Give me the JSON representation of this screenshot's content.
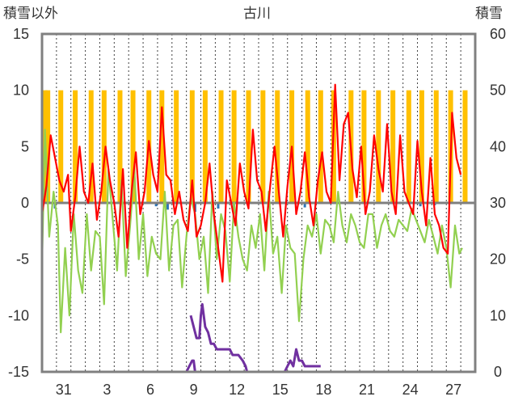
{
  "chart_data": {
    "type": "line",
    "title": "古川",
    "left_axis_label": "積雪以外",
    "right_axis_label": "積雪",
    "y_left": {
      "min": -15,
      "max": 15,
      "ticks": [
        15,
        10,
        5,
        0,
        -5,
        -10,
        -15
      ]
    },
    "y_right": {
      "min": 0,
      "max": 60,
      "ticks": [
        60,
        50,
        40,
        30,
        20,
        10,
        0
      ]
    },
    "x_domain": [
      0,
      30
    ],
    "x_tick_labels": [
      {
        "label": "31",
        "x": 1.5
      },
      {
        "label": "3",
        "x": 4.5
      },
      {
        "label": "6",
        "x": 7.5
      },
      {
        "label": "9",
        "x": 10.5
      },
      {
        "label": "12",
        "x": 13.5
      },
      {
        "label": "15",
        "x": 16.5
      },
      {
        "label": "18",
        "x": 19.5
      },
      {
        "label": "21",
        "x": 22.5
      },
      {
        "label": "24",
        "x": 25.5
      },
      {
        "label": "27",
        "x": 28.5
      }
    ],
    "grid": {
      "vertical": "dotted, one per day",
      "horizontal": "none"
    },
    "colors": {
      "sunshine_bars": "#ffc000",
      "max_temp": "#ff0000",
      "min_temp": "#92d050",
      "snow_depth": "#7030a0",
      "precip": "#2e75b6",
      "zero_line": "#7f7f7f",
      "frame": "#808080"
    },
    "series": [
      {
        "key": "sunshine",
        "type": "bar",
        "axis": "left",
        "values": [
          [
            0.2,
            10
          ],
          [
            0.4,
            10
          ],
          [
            1.3,
            10
          ],
          [
            2.3,
            10
          ],
          [
            3.4,
            10
          ],
          [
            4.3,
            10
          ],
          [
            5.4,
            10
          ],
          [
            6.3,
            10
          ],
          [
            7.4,
            10
          ],
          [
            8.3,
            10
          ],
          [
            9.3,
            10
          ],
          [
            10.4,
            10
          ],
          [
            11.3,
            10
          ],
          [
            12.4,
            10
          ],
          [
            13.3,
            10
          ],
          [
            14.3,
            10
          ],
          [
            15.3,
            10
          ],
          [
            16.3,
            10
          ],
          [
            17.3,
            10
          ],
          [
            18.4,
            10
          ],
          [
            19.3,
            10
          ],
          [
            20.2,
            10
          ],
          [
            21.4,
            10
          ],
          [
            22.3,
            10
          ],
          [
            23.3,
            10
          ],
          [
            24.3,
            10
          ],
          [
            25.4,
            10
          ],
          [
            26.3,
            10
          ],
          [
            27.3,
            10
          ],
          [
            28.3,
            10
          ],
          [
            29.3,
            10
          ]
        ]
      },
      {
        "key": "max_temp",
        "type": "line",
        "axis": "left",
        "values": [
          [
            0,
            -1
          ],
          [
            0.3,
            1.5
          ],
          [
            0.6,
            6
          ],
          [
            0.9,
            4
          ],
          [
            1.2,
            2
          ],
          [
            1.5,
            1
          ],
          [
            1.8,
            2.5
          ],
          [
            2.0,
            -2.5
          ],
          [
            2.3,
            0.5
          ],
          [
            2.6,
            5
          ],
          [
            2.9,
            1
          ],
          [
            3.2,
            0
          ],
          [
            3.5,
            3.5
          ],
          [
            3.8,
            -1.5
          ],
          [
            4.1,
            1
          ],
          [
            4.4,
            5
          ],
          [
            4.7,
            2
          ],
          [
            5.0,
            0
          ],
          [
            5.3,
            -3
          ],
          [
            5.6,
            3
          ],
          [
            5.9,
            -4
          ],
          [
            6.2,
            1
          ],
          [
            6.5,
            4.5
          ],
          [
            6.8,
            -1
          ],
          [
            7.1,
            1
          ],
          [
            7.4,
            5.5
          ],
          [
            7.7,
            2.5
          ],
          [
            8.0,
            1
          ],
          [
            8.3,
            8.5
          ],
          [
            8.6,
            2.5
          ],
          [
            8.9,
            2
          ],
          [
            9.2,
            -1
          ],
          [
            9.5,
            1
          ],
          [
            9.8,
            -1.5
          ],
          [
            10.1,
            -2.5
          ],
          [
            10.4,
            2
          ],
          [
            10.7,
            -3
          ],
          [
            11.0,
            -2
          ],
          [
            11.3,
            0
          ],
          [
            11.6,
            3.5
          ],
          [
            11.9,
            -1
          ],
          [
            12.2,
            -4
          ],
          [
            12.5,
            -7
          ],
          [
            12.8,
            2
          ],
          [
            13.1,
            0
          ],
          [
            13.4,
            -2
          ],
          [
            13.7,
            3.5
          ],
          [
            14.0,
            1
          ],
          [
            14.3,
            -0.5
          ],
          [
            14.6,
            6.5
          ],
          [
            14.9,
            2
          ],
          [
            15.2,
            1
          ],
          [
            15.5,
            -2.5
          ],
          [
            15.8,
            1.5
          ],
          [
            16.1,
            5
          ],
          [
            16.4,
            1
          ],
          [
            16.7,
            -3
          ],
          [
            17.0,
            1.5
          ],
          [
            17.3,
            5
          ],
          [
            17.6,
            -1
          ],
          [
            17.9,
            1
          ],
          [
            18.2,
            4.5
          ],
          [
            18.5,
            0.5
          ],
          [
            18.8,
            -2
          ],
          [
            19.1,
            2
          ],
          [
            19.4,
            4.5
          ],
          [
            19.7,
            1
          ],
          [
            20.0,
            0
          ],
          [
            20.3,
            10.5
          ],
          [
            20.6,
            2
          ],
          [
            20.9,
            7
          ],
          [
            21.2,
            8
          ],
          [
            21.5,
            3
          ],
          [
            21.8,
            0.5
          ],
          [
            22.1,
            5
          ],
          [
            22.4,
            -1
          ],
          [
            22.7,
            1
          ],
          [
            23.0,
            6
          ],
          [
            23.3,
            3
          ],
          [
            23.6,
            1
          ],
          [
            23.9,
            7
          ],
          [
            24.2,
            1
          ],
          [
            24.5,
            -1
          ],
          [
            24.8,
            6
          ],
          [
            25.1,
            1
          ],
          [
            25.4,
            0
          ],
          [
            25.7,
            -1
          ],
          [
            26.0,
            5.5
          ],
          [
            26.3,
            1
          ],
          [
            26.6,
            -2
          ],
          [
            26.9,
            4
          ],
          [
            27.2,
            -1
          ],
          [
            27.5,
            -2
          ],
          [
            27.8,
            -4
          ],
          [
            28.1,
            -4.5
          ],
          [
            28.4,
            8
          ],
          [
            28.7,
            4
          ],
          [
            29.0,
            2.5
          ]
        ]
      },
      {
        "key": "min_temp",
        "type": "line",
        "axis": "left",
        "values": [
          [
            0,
            -5.5
          ],
          [
            0.2,
            6.5
          ],
          [
            0.5,
            -3
          ],
          [
            0.8,
            1
          ],
          [
            1.1,
            -2
          ],
          [
            1.3,
            -11.5
          ],
          [
            1.6,
            -4
          ],
          [
            1.9,
            -10
          ],
          [
            2.2,
            -1
          ],
          [
            2.5,
            -6
          ],
          [
            2.8,
            -8
          ],
          [
            3.1,
            -1
          ],
          [
            3.4,
            -6
          ],
          [
            3.7,
            -2.5
          ],
          [
            4.0,
            -3
          ],
          [
            4.3,
            -9
          ],
          [
            4.6,
            3
          ],
          [
            4.9,
            -1.5
          ],
          [
            5.2,
            -6
          ],
          [
            5.5,
            2
          ],
          [
            5.8,
            -6.5
          ],
          [
            6.1,
            -2
          ],
          [
            6.4,
            3
          ],
          [
            6.7,
            -5
          ],
          [
            7.0,
            -1
          ],
          [
            7.3,
            -6.5
          ],
          [
            7.6,
            -3
          ],
          [
            7.9,
            -4.5
          ],
          [
            8.2,
            -5
          ],
          [
            8.5,
            1
          ],
          [
            8.8,
            -6
          ],
          [
            9.1,
            -2
          ],
          [
            9.4,
            -1.5
          ],
          [
            9.7,
            -7.5
          ],
          [
            10.0,
            -3
          ],
          [
            10.3,
            0.5
          ],
          [
            10.6,
            -1
          ],
          [
            10.9,
            -5
          ],
          [
            11.2,
            -3
          ],
          [
            11.5,
            -8
          ],
          [
            11.8,
            1
          ],
          [
            12.1,
            -5
          ],
          [
            12.4,
            -1
          ],
          [
            12.7,
            -2.5
          ],
          [
            13.0,
            -7
          ],
          [
            13.3,
            0
          ],
          [
            13.6,
            -3
          ],
          [
            13.9,
            -5
          ],
          [
            14.2,
            -6
          ],
          [
            14.5,
            -2
          ],
          [
            14.8,
            -4
          ],
          [
            15.1,
            -1
          ],
          [
            15.4,
            -6
          ],
          [
            15.7,
            1
          ],
          [
            16.0,
            -4.5
          ],
          [
            16.3,
            -3
          ],
          [
            16.6,
            -8
          ],
          [
            16.9,
            -2
          ],
          [
            17.2,
            -4
          ],
          [
            17.5,
            -4.5
          ],
          [
            17.8,
            -10.5
          ],
          [
            18.1,
            -5
          ],
          [
            18.4,
            -2
          ],
          [
            18.7,
            -3
          ],
          [
            19.0,
            -1
          ],
          [
            19.3,
            -4.5
          ],
          [
            19.6,
            -1.5
          ],
          [
            19.9,
            -2
          ],
          [
            20.2,
            -3.5
          ],
          [
            20.5,
            1
          ],
          [
            20.8,
            -2
          ],
          [
            21.1,
            -3.5
          ],
          [
            21.4,
            -1
          ],
          [
            21.7,
            -2
          ],
          [
            22.0,
            -3.5
          ],
          [
            22.3,
            -4
          ],
          [
            22.6,
            -1
          ],
          [
            22.9,
            -1
          ],
          [
            23.2,
            -4
          ],
          [
            23.5,
            -2
          ],
          [
            23.8,
            -1
          ],
          [
            24.1,
            -2.5
          ],
          [
            24.4,
            -3
          ],
          [
            24.7,
            -1.5
          ],
          [
            25.0,
            -2
          ],
          [
            25.3,
            -2.5
          ],
          [
            25.6,
            -0.5
          ],
          [
            25.9,
            -1.5
          ],
          [
            26.2,
            -2.5
          ],
          [
            26.5,
            -3.5
          ],
          [
            26.8,
            -1.5
          ],
          [
            27.1,
            -3
          ],
          [
            27.4,
            -4.5
          ],
          [
            27.7,
            -2
          ],
          [
            28.0,
            -4
          ],
          [
            28.3,
            -7.5
          ],
          [
            28.6,
            -2
          ],
          [
            28.9,
            -4.5
          ],
          [
            29.1,
            -4
          ]
        ]
      },
      {
        "key": "snow_depth",
        "type": "line",
        "axis": "right",
        "values": [
          [
            0,
            0
          ],
          [
            10.0,
            0
          ],
          [
            10.2,
            1
          ],
          [
            10.4,
            2
          ],
          [
            10.5,
            2
          ],
          [
            10.6,
            0
          ],
          [
            11.5,
            0
          ]
        ]
      },
      {
        "key": "snow_depth_b",
        "type": "line",
        "axis": "right",
        "values": [
          [
            10.3,
            10
          ],
          [
            10.5,
            8
          ],
          [
            10.7,
            6
          ],
          [
            10.9,
            6
          ],
          [
            11.0,
            10
          ],
          [
            11.1,
            12
          ],
          [
            11.3,
            8
          ],
          [
            11.5,
            7
          ],
          [
            11.7,
            5
          ],
          [
            11.9,
            5
          ],
          [
            12.1,
            4
          ],
          [
            12.3,
            4
          ],
          [
            13.0,
            4
          ],
          [
            13.2,
            3
          ],
          [
            13.6,
            3
          ],
          [
            13.9,
            2
          ],
          [
            14.1,
            1
          ],
          [
            14.2,
            0
          ],
          [
            16.8,
            0
          ],
          [
            17.0,
            1
          ],
          [
            17.2,
            2
          ],
          [
            17.4,
            1
          ],
          [
            17.6,
            4
          ],
          [
            17.8,
            2
          ],
          [
            18.0,
            2
          ],
          [
            18.2,
            1
          ],
          [
            18.4,
            1
          ],
          [
            19.3,
            1
          ]
        ]
      },
      {
        "key": "snow_depth_base",
        "type": "line",
        "axis": "right",
        "values": [
          [
            0,
            0
          ],
          [
            30,
            0
          ]
        ]
      },
      {
        "key": "precip",
        "type": "bar",
        "axis": "left",
        "values": [
          [
            0.9,
            -0.5
          ],
          [
            7.9,
            -0.3
          ],
          [
            8.7,
            -0.6
          ],
          [
            10.6,
            -0.8
          ],
          [
            11.8,
            -0.4
          ],
          [
            12.2,
            -0.5
          ],
          [
            13.3,
            -0.6
          ],
          [
            18.2,
            -0.4
          ],
          [
            26.2,
            -0.3
          ],
          [
            27.2,
            -0.2
          ]
        ]
      }
    ]
  }
}
